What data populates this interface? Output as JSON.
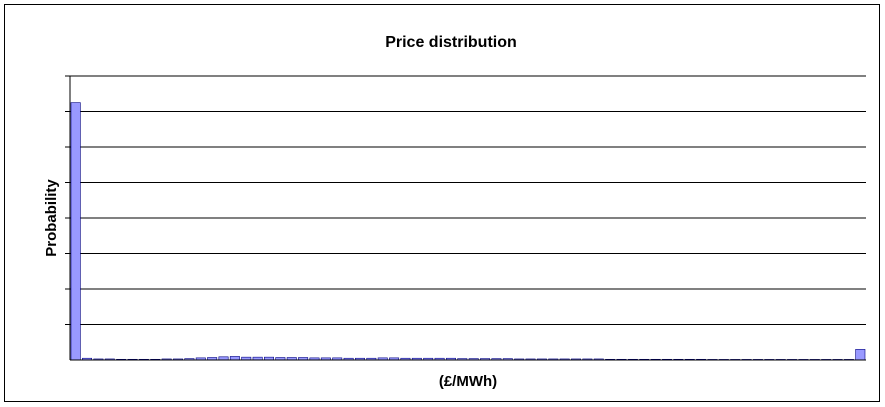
{
  "chart_data": {
    "type": "bar",
    "title": "Price distribution",
    "xlabel": "(£/MWh)",
    "ylabel": "Probability",
    "ylim": [
      0,
      0.08
    ],
    "y_tick_step": 0.01,
    "grid": true,
    "x_tick_labels": false,
    "y_tick_labels": false,
    "colors": {
      "bar_fill": "#9999ff",
      "bar_stroke": "#000080",
      "grid": "#000000"
    },
    "values": [
      0.0725,
      0.0005,
      0.0003,
      0.0003,
      0.0002,
      0.0002,
      0.0002,
      0.0002,
      0.0003,
      0.0003,
      0.0004,
      0.0006,
      0.0007,
      0.0009,
      0.001,
      0.0008,
      0.0008,
      0.0008,
      0.0007,
      0.0007,
      0.0007,
      0.0006,
      0.0006,
      0.0006,
      0.0005,
      0.0005,
      0.0005,
      0.0006,
      0.0006,
      0.0005,
      0.0005,
      0.0005,
      0.0005,
      0.0005,
      0.0004,
      0.0004,
      0.0004,
      0.0004,
      0.0004,
      0.0003,
      0.0003,
      0.0003,
      0.0003,
      0.0003,
      0.0003,
      0.0003,
      0.0003,
      0.0002,
      0.0002,
      0.0002,
      0.0002,
      0.0002,
      0.0002,
      0.0002,
      0.0002,
      0.0002,
      0.0001,
      0.0001,
      0.0001,
      0.0001,
      0.0001,
      0.0001,
      0.0001,
      0.0001,
      0.0001,
      0.0001,
      0.0001,
      0.0001,
      0.0001,
      0.003
    ]
  }
}
